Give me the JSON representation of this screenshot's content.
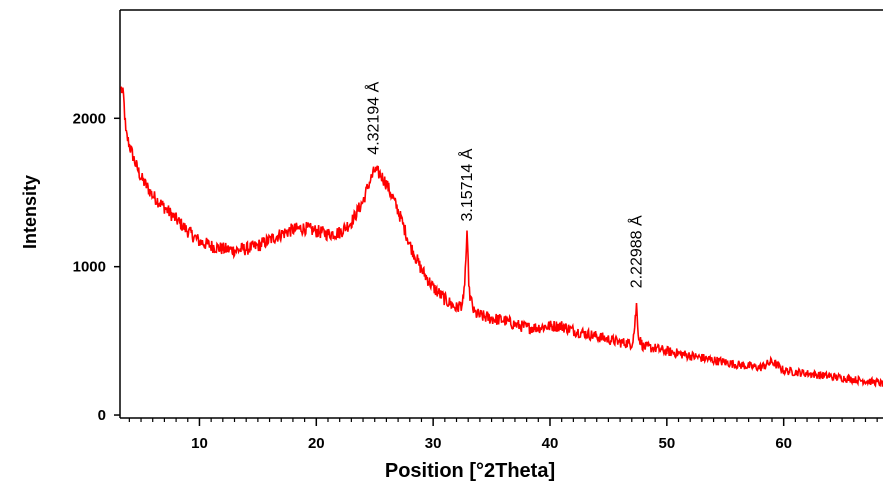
{
  "chart_data": {
    "type": "line",
    "title": "",
    "xlabel": "Position [°2Theta]",
    "ylabel": "Intensity",
    "xlim": [
      3.2,
      68.5
    ],
    "ylim": [
      -20,
      2730
    ],
    "x_ticks": [
      10,
      20,
      30,
      40,
      50,
      60
    ],
    "y_ticks": [
      0,
      1000,
      2000
    ],
    "x_tick_labels": [
      "10",
      "20",
      "30",
      "40",
      "50",
      "60"
    ],
    "y_tick_labels": [
      "0",
      "1000",
      "2000"
    ],
    "grid": false,
    "legend": "none",
    "line_color": "#ff0000",
    "series": [
      {
        "x": [
          3.3,
          3.5,
          3.7,
          4.0,
          4.5,
          5.0,
          6.0,
          7.0,
          8.0,
          9.0,
          10.0,
          11.0,
          12.0,
          13.0,
          14.0,
          15.0,
          16.0,
          17.0,
          18.0,
          19.0,
          20.0,
          21.0,
          22.0,
          23.0,
          24.0,
          24.5,
          25.0,
          25.5,
          26.0,
          27.0,
          28.0,
          29.0,
          30.0,
          31.0,
          32.0,
          32.6,
          32.9,
          33.1,
          33.5,
          34.0,
          35.0,
          36.0,
          37.0,
          38.0,
          39.0,
          40.0,
          41.0,
          42.0,
          43.0,
          44.0,
          45.0,
          46.0,
          47.0,
          47.2,
          47.4,
          47.6,
          48.0,
          49.0,
          50.0,
          52.0,
          54.0,
          56.0,
          58.0,
          59.0,
          60.0,
          62.0,
          64.0,
          66.0,
          68.0,
          68.5
        ],
        "y": [
          2200,
          2150,
          1900,
          1820,
          1700,
          1600,
          1480,
          1400,
          1320,
          1240,
          1170,
          1140,
          1120,
          1110,
          1120,
          1140,
          1180,
          1220,
          1250,
          1260,
          1240,
          1220,
          1230,
          1300,
          1440,
          1560,
          1650,
          1620,
          1560,
          1380,
          1150,
          980,
          860,
          780,
          720,
          760,
          1200,
          820,
          690,
          670,
          650,
          640,
          610,
          590,
          590,
          600,
          600,
          570,
          550,
          530,
          510,
          490,
          480,
          560,
          740,
          520,
          460,
          450,
          430,
          400,
          370,
          340,
          320,
          360,
          300,
          280,
          260,
          240,
          220,
          210
        ]
      }
    ],
    "annotations": [
      {
        "text": "4.32194 Å",
        "x": 24.9,
        "y": 1660
      },
      {
        "text": "3.15714 Å",
        "x": 32.9,
        "y": 1210
      },
      {
        "text": "2.22988 Å",
        "x": 47.4,
        "y": 760
      }
    ]
  }
}
